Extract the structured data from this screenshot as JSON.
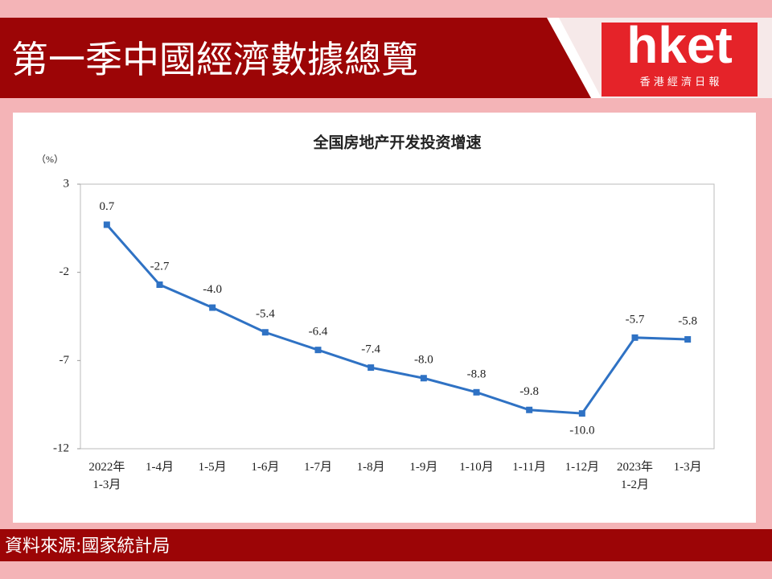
{
  "header": {
    "title": "第一季中國經濟數據總覽",
    "logo": "hket",
    "logo_subtitle": "香 港 經 濟 日 報"
  },
  "chart_data": {
    "type": "line",
    "title": "全国房地产开发投资增速",
    "y_unit": "（%）",
    "categories": [
      "2022年\n1-3月",
      "1-4月",
      "1-5月",
      "1-6月",
      "1-7月",
      "1-8月",
      "1-9月",
      "1-10月",
      "1-11月",
      "1-12月",
      "2023年\n1-2月",
      "1-3月"
    ],
    "values": [
      0.7,
      -2.7,
      -4.0,
      -5.4,
      -6.4,
      -7.4,
      -8.0,
      -8.8,
      -9.8,
      -10.0,
      -5.7,
      -5.8
    ],
    "value_labels": [
      "0.7",
      "-2.7",
      "-4.0",
      "-5.4",
      "-6.4",
      "-7.4",
      "-8.0",
      "-8.8",
      "-9.8",
      "-10.0",
      "-5.7",
      "-5.8"
    ],
    "color": "#2f72c4",
    "ylim": [
      -12,
      3
    ],
    "yticks": [
      3,
      -2,
      -7,
      -12
    ]
  },
  "footer": {
    "source": "資料來源:國家統計局"
  }
}
